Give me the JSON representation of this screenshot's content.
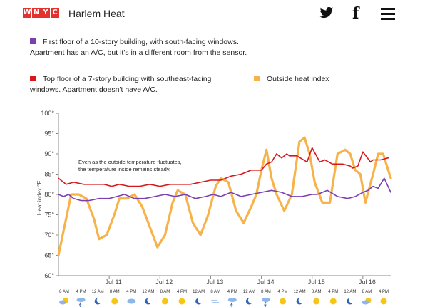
{
  "header": {
    "logo_letters": [
      "W",
      "N",
      "Y",
      "C"
    ],
    "title": "Harlem Heat",
    "icons": [
      "twitter-icon",
      "facebook-icon",
      "menu-icon"
    ]
  },
  "legend": {
    "first_floor": "First floor of a 10-story building, with south-facing windows. Apartment has an A/C, but it's in a different room from the sensor.",
    "top_floor": "Top floor of a 7-story building with southeast-facing windows. Apartment doesn't have A/C.",
    "outside": "Outside heat index"
  },
  "colors": {
    "purple": "#7b3fb0",
    "red": "#d7191c",
    "orange": "#f7b34a",
    "brand": "#e3312d"
  },
  "chart_data": {
    "type": "line",
    "ylabel": "Heat index °F",
    "ylim": [
      60,
      100
    ],
    "y_ticks": [
      "60°",
      "65°",
      "70°",
      "75°",
      "80°",
      "85°",
      "90°",
      "95°",
      "100°"
    ],
    "x_range": [
      0,
      6.55
    ],
    "x_unit": "days from Jul 10 00:00",
    "x_ticks": [
      {
        "label": "Jul 11",
        "x": 1
      },
      {
        "label": "Jul 12",
        "x": 2
      },
      {
        "label": "Jul 13",
        "x": 3
      },
      {
        "label": "Jul 14",
        "x": 4
      },
      {
        "label": "Jul 15",
        "x": 5
      },
      {
        "label": "Jul 16",
        "x": 6
      }
    ],
    "annotation": "Even as the outside temperature fluctuates, the temperature inside remains steady.",
    "series": [
      {
        "name": "Top floor of a 7-story building with southeast-facing windows. Apartment doesn't have A/C.",
        "color": "#d7191c",
        "x": [
          0,
          0.15,
          0.3,
          0.5,
          0.7,
          0.9,
          1.05,
          1.2,
          1.4,
          1.6,
          1.8,
          2.0,
          2.2,
          2.4,
          2.6,
          2.8,
          3.0,
          3.2,
          3.4,
          3.6,
          3.8,
          4.0,
          4.1,
          4.2,
          4.3,
          4.4,
          4.5,
          4.55,
          4.7,
          4.9,
          5.0,
          5.15,
          5.25,
          5.4,
          5.6,
          5.75,
          5.8,
          5.9,
          6.0,
          6.15,
          6.2,
          6.35,
          6.5
        ],
        "y": [
          84,
          82.5,
          83,
          82.5,
          82.5,
          82.5,
          82,
          82.5,
          82,
          82,
          82.5,
          82,
          82.5,
          82.5,
          82.5,
          83,
          83.5,
          83.5,
          84.5,
          85,
          86,
          86,
          87.5,
          88,
          90,
          89,
          90,
          89.5,
          89.5,
          88,
          91.5,
          88,
          88.5,
          87.5,
          87.5,
          87,
          86.5,
          87,
          90.5,
          88,
          88.5,
          88.5,
          89
        ]
      },
      {
        "name": "First floor of a 10-story building, with south-facing windows. Apartment has an A/C, but it's in a different room from the sensor.",
        "color": "#7b3fb0",
        "x": [
          0,
          0.1,
          0.2,
          0.3,
          0.45,
          0.6,
          0.8,
          1.0,
          1.15,
          1.3,
          1.5,
          1.7,
          1.9,
          2.1,
          2.3,
          2.5,
          2.7,
          2.9,
          3.05,
          3.2,
          3.4,
          3.6,
          3.8,
          4.0,
          4.2,
          4.4,
          4.6,
          4.8,
          5.0,
          5.1,
          5.3,
          5.5,
          5.7,
          5.85,
          6.0,
          6.1,
          6.2,
          6.3,
          6.42,
          6.55
        ],
        "y": [
          80,
          79.5,
          80,
          79,
          78.5,
          78.5,
          79,
          79,
          79.5,
          80,
          79,
          79,
          79.5,
          80,
          79.5,
          80,
          79,
          79.5,
          80,
          79.5,
          80.5,
          79.5,
          80,
          80.5,
          81,
          80.5,
          79.5,
          79.5,
          80,
          80,
          81,
          79.5,
          79,
          79.5,
          80.5,
          81,
          82,
          81.5,
          84,
          80.5
        ]
      },
      {
        "name": "Outside heat index",
        "color": "#f7b34a",
        "x": [
          0,
          0.1,
          0.25,
          0.4,
          0.55,
          0.7,
          0.8,
          0.95,
          1.1,
          1.2,
          1.35,
          1.5,
          1.65,
          1.8,
          1.95,
          2.1,
          2.25,
          2.35,
          2.5,
          2.65,
          2.8,
          2.95,
          3.1,
          3.2,
          3.35,
          3.5,
          3.65,
          3.8,
          3.9,
          4.0,
          4.1,
          4.2,
          4.3,
          4.45,
          4.6,
          4.75,
          4.85,
          4.95,
          5.05,
          5.2,
          5.35,
          5.5,
          5.65,
          5.75,
          5.85,
          5.95,
          6.05,
          6.2,
          6.3,
          6.4,
          6.5,
          6.55
        ],
        "y": [
          65,
          71,
          80,
          80,
          79,
          74,
          69,
          70,
          75,
          79,
          79,
          80,
          77,
          72,
          67,
          70,
          78,
          81,
          80,
          73,
          70,
          75,
          82,
          84,
          83,
          76,
          73,
          77,
          80,
          86,
          91,
          84,
          80,
          76,
          80,
          93,
          94,
          90,
          83,
          78,
          78,
          90,
          91,
          90,
          86,
          85,
          78,
          85,
          90,
          90,
          86,
          84
        ]
      }
    ],
    "bottom_labels": [
      "8 AM",
      "4 PM",
      "12 AM",
      "8 AM",
      "4 PM",
      "12 AM",
      "8 AM",
      "4 PM",
      "12 AM",
      "8 AM",
      "4 PM",
      "12 AM",
      "8 AM",
      "4 PM",
      "12 AM",
      "8 AM",
      "4 PM",
      "12 AM",
      "8 AM",
      "4 PM"
    ],
    "weather_icons": [
      "partly-cloudy-icon",
      "storm-icon",
      "moon-icon",
      "sun-icon",
      "cloudy-icon",
      "moon-icon",
      "sun-icon",
      "sun-icon",
      "moon-icon",
      "windy-icon",
      "storm-icon",
      "moon-icon",
      "storm-icon",
      "sun-icon",
      "moon-icon",
      "sun-icon",
      "sun-icon",
      "moon-icon",
      "partly-cloudy-icon",
      "sun-icon"
    ]
  }
}
